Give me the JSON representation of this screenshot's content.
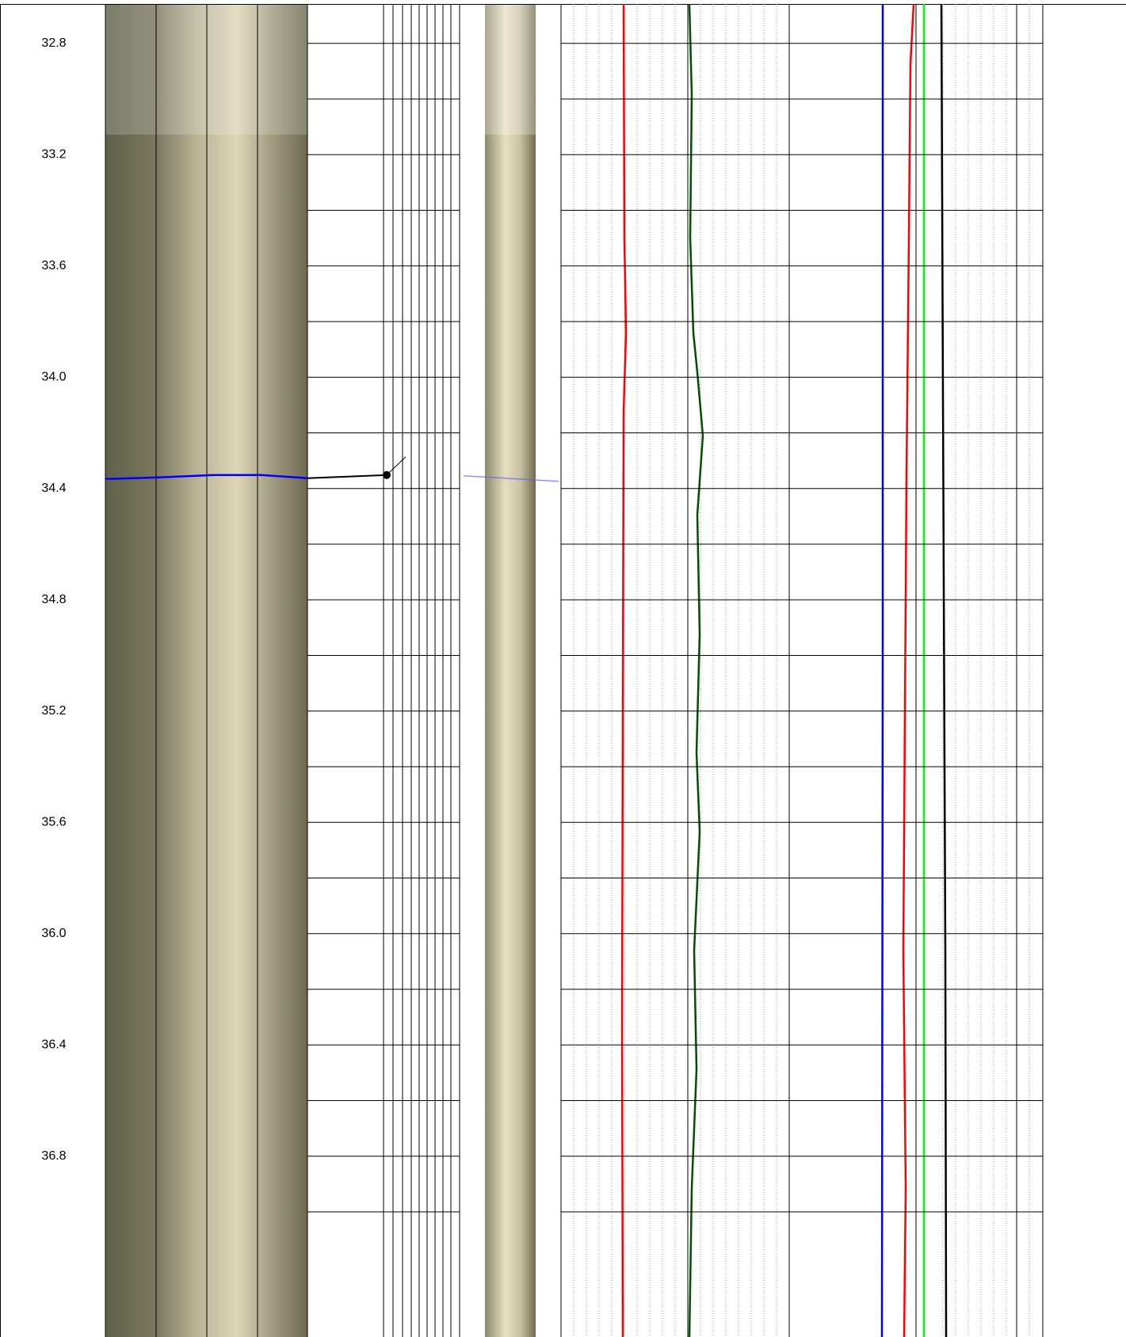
{
  "chart_data": {
    "type": "well-log",
    "ylim": [
      32.644,
      37.45
    ],
    "yticks": [
      32.8,
      33.2,
      33.6,
      {
        "value": 34,
        "label": "34.0"
      },
      34.4,
      34.8,
      35.2,
      35.6,
      {
        "value": 36,
        "label": "36.0"
      },
      36.4,
      36.8
    ],
    "minor_yticks": [
      33,
      33.4,
      33.8,
      34.2,
      34.6,
      35,
      35.4,
      35.8,
      36.2,
      36.6,
      37
    ],
    "dip_depth": 34.36,
    "grid": true
  }
}
